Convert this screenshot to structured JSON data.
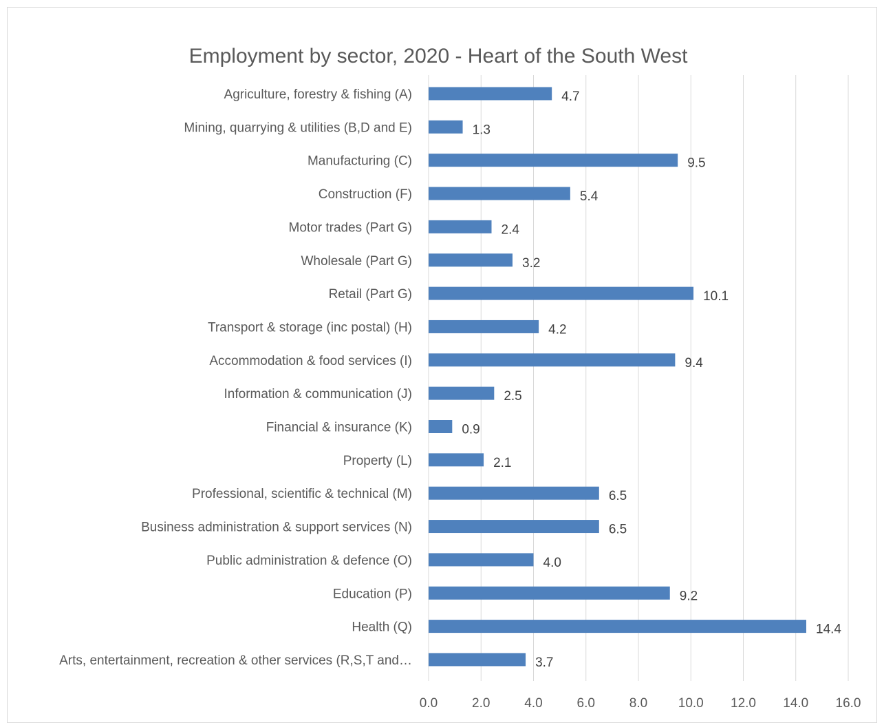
{
  "chart_data": {
    "type": "bar",
    "orientation": "horizontal",
    "title": "Employment by sector, 2020 - Heart of the South West",
    "xlabel": "",
    "ylabel": "",
    "xlim": [
      0,
      16
    ],
    "x_ticks": [
      "0.0",
      "2.0",
      "4.0",
      "6.0",
      "8.0",
      "10.0",
      "12.0",
      "14.0",
      "16.0"
    ],
    "grid": true,
    "legend": "none",
    "bar_color": "#4f81bd",
    "categories": [
      "Agriculture, forestry & fishing (A)",
      "Mining, quarrying & utilities (B,D and E)",
      "Manufacturing (C)",
      "Construction (F)",
      "Motor trades (Part G)",
      "Wholesale (Part G)",
      "Retail (Part G)",
      "Transport & storage (inc postal) (H)",
      "Accommodation & food services (I)",
      "Information & communication (J)",
      "Financial & insurance (K)",
      "Property (L)",
      "Professional, scientific & technical (M)",
      "Business administration & support services (N)",
      "Public administration & defence (O)",
      "Education (P)",
      "Health (Q)",
      "Arts, entertainment, recreation & other services (R,S,T and…"
    ],
    "values": [
      4.7,
      1.3,
      9.5,
      5.4,
      2.4,
      3.2,
      10.1,
      4.2,
      9.4,
      2.5,
      0.9,
      2.1,
      6.5,
      6.5,
      4.0,
      9.2,
      14.4,
      3.7
    ],
    "data_labels": [
      "4.7",
      "1.3",
      "9.5",
      "5.4",
      "2.4",
      "3.2",
      "10.1",
      "4.2",
      "9.4",
      "2.5",
      "0.9",
      "2.1",
      "6.5",
      "6.5",
      "4.0",
      "9.2",
      "14.4",
      "3.7"
    ]
  }
}
